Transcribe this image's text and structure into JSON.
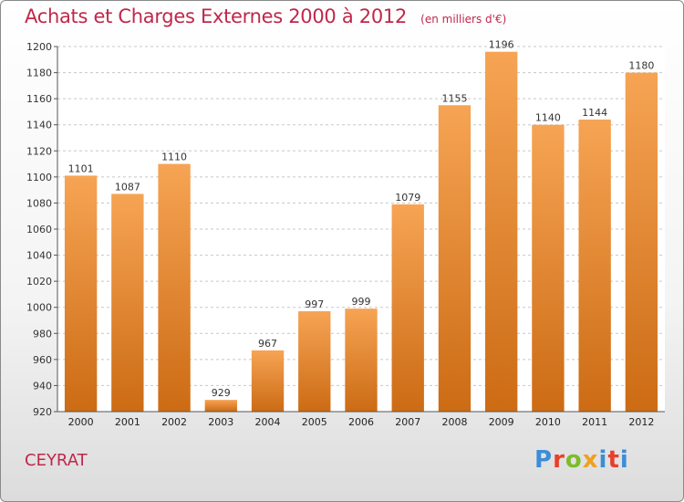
{
  "header": {
    "title": "Achats et Charges Externes 2000 à 2012",
    "subtitle": "(en milliers d'€)"
  },
  "footer": {
    "place_name": "CEYRAT",
    "brand_letters": [
      "P",
      "r",
      "o",
      "x",
      "i",
      "t",
      "i"
    ],
    "brand_colors": [
      "#3a8ed8",
      "#e8402a",
      "#7cbc2a",
      "#f0a020",
      "#3a8ed8",
      "#e8402a",
      "#3a8ed8"
    ]
  },
  "colors": {
    "bar_top": "#f6a454",
    "bar_bottom": "#cc6b14",
    "title": "#c0274a"
  },
  "chart_data": {
    "type": "bar",
    "categories": [
      "2000",
      "2001",
      "2002",
      "2003",
      "2004",
      "2005",
      "2006",
      "2007",
      "2008",
      "2009",
      "2010",
      "2011",
      "2012"
    ],
    "values": [
      1101,
      1087,
      1110,
      929,
      967,
      997,
      999,
      1079,
      1155,
      1196,
      1140,
      1144,
      1180
    ],
    "value_labels": [
      "1101",
      "1087",
      "1110",
      "929",
      "967",
      "997",
      "999",
      "1079",
      "1155",
      "1196",
      "1140",
      "1144",
      "1180"
    ],
    "y_ticks": [
      920,
      940,
      960,
      980,
      1000,
      1020,
      1040,
      1060,
      1080,
      1100,
      1120,
      1140,
      1160,
      1180,
      1200
    ],
    "ylim": [
      920,
      1200
    ],
    "grid": true
  }
}
